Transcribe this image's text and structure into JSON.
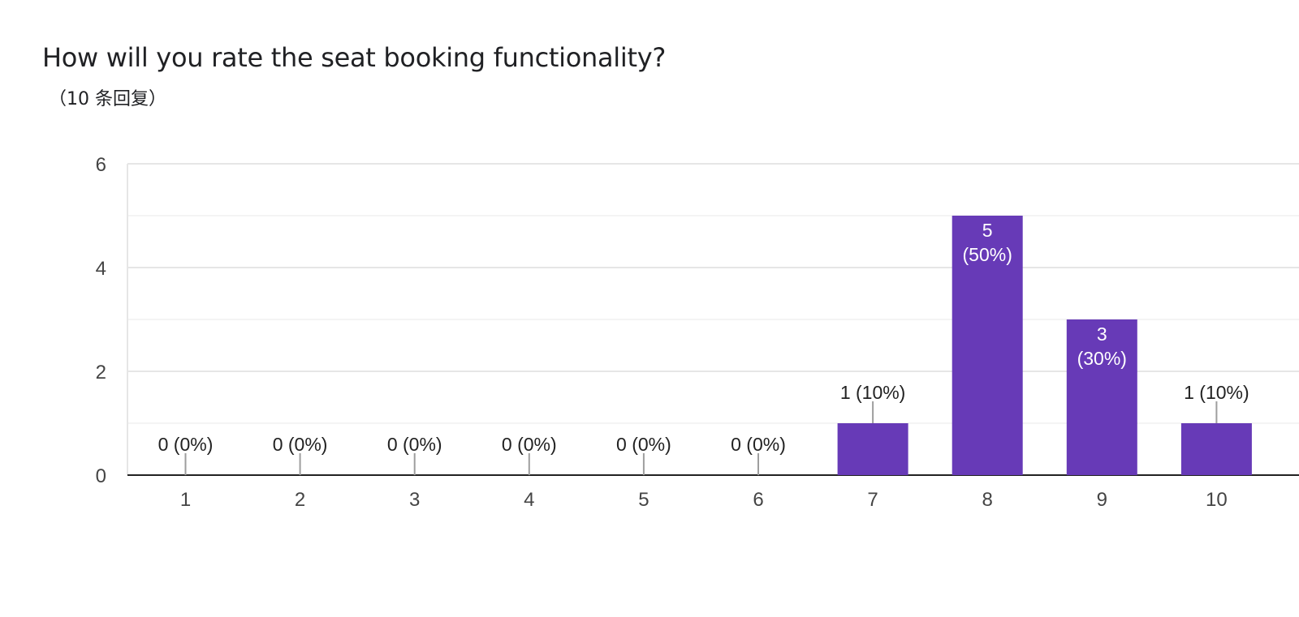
{
  "header": {
    "title": "How will you rate the seat booking functionality?",
    "response_count": "（10 条回复）"
  },
  "chart_data": {
    "type": "bar",
    "categories": [
      "1",
      "2",
      "3",
      "4",
      "5",
      "6",
      "7",
      "8",
      "9",
      "10"
    ],
    "values": [
      0,
      0,
      0,
      0,
      0,
      0,
      1,
      5,
      3,
      1
    ],
    "data_labels": [
      "0 (0%)",
      "0 (0%)",
      "0 (0%)",
      "0 (0%)",
      "0 (0%)",
      "0 (0%)",
      "1 (10%)",
      "5 (50%)",
      "3 (30%)",
      "1 (10%)"
    ],
    "percent_labels": [
      "(0%)",
      "(0%)",
      "(0%)",
      "(0%)",
      "(0%)",
      "(0%)",
      "(10%)",
      "(50%)",
      "(30%)",
      "(10%)"
    ],
    "title": "How will you rate the seat booking functionality?",
    "xlabel": "",
    "ylabel": "",
    "ylim": [
      0,
      6
    ],
    "yticks": [
      0,
      2,
      4,
      6
    ],
    "grid": true,
    "bar_color": "#673ab7"
  }
}
